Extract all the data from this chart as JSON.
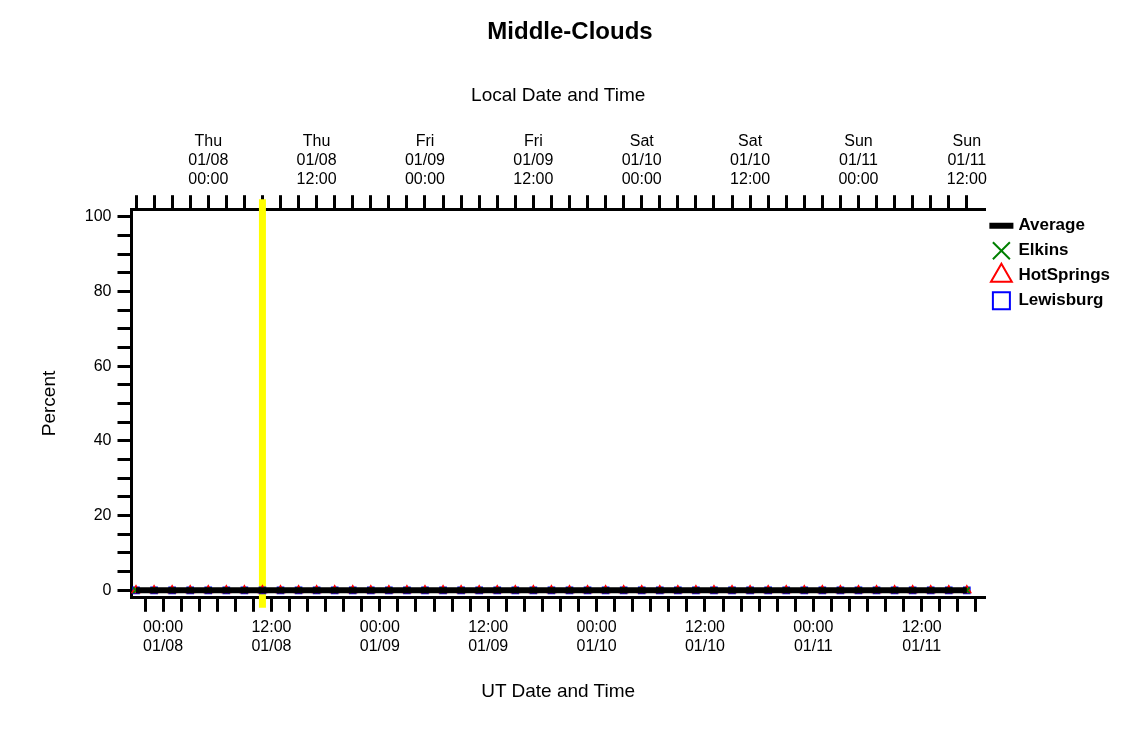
{
  "chart_data": {
    "type": "line",
    "title": "Middle-Clouds",
    "xlabel": "UT Date and Time",
    "x2label": "Local Date and Time",
    "ylabel": "Percent",
    "x": [
      "--01-07T21:00",
      "--01-07T23:00",
      "--01-08T01:00",
      "--01-08T03:00",
      "--01-08T05:00",
      "--01-08T07:00",
      "--01-08T09:00",
      "--01-08T11:00",
      "--01-08T13:00",
      "--01-08T15:00",
      "--01-08T17:00",
      "--01-08T19:00",
      "--01-08T21:00",
      "--01-08T23:00",
      "--01-09T01:00",
      "--01-09T03:00",
      "--01-09T05:00",
      "--01-09T07:00",
      "--01-09T09:00",
      "--01-09T11:00",
      "--01-09T13:00",
      "--01-09T15:00",
      "--01-09T17:00",
      "--01-09T19:00",
      "--01-09T21:00",
      "--01-09T23:00",
      "--01-10T01:00",
      "--01-10T03:00",
      "--01-10T05:00",
      "--01-10T07:00",
      "--01-10T09:00",
      "--01-10T11:00",
      "--01-10T13:00",
      "--01-10T15:00",
      "--01-10T17:00",
      "--01-10T19:00",
      "--01-10T21:00",
      "--01-10T23:00",
      "--01-11T01:00",
      "--01-11T03:00",
      "--01-11T05:00",
      "--01-11T07:00",
      "--01-11T09:00",
      "--01-11T11:00",
      "--01-11T13:00",
      "--01-11T15:00",
      "--01-11T17:00"
    ],
    "series": [
      {
        "name": "Average",
        "color": "#000000",
        "marker": "none",
        "values": [
          0,
          0,
          0,
          0,
          0,
          0,
          0,
          0,
          0,
          0,
          0,
          0,
          0,
          0,
          0,
          0,
          0,
          0,
          0,
          0,
          0,
          0,
          0,
          0,
          0,
          0,
          0,
          0,
          0,
          0,
          0,
          0,
          0,
          0,
          0,
          0,
          0,
          0,
          0,
          0,
          0,
          0,
          0,
          0,
          0,
          0,
          0
        ]
      },
      {
        "name": "Elkins",
        "type": "scatter",
        "color": "#008000",
        "marker": "cross",
        "values": [
          0,
          0,
          0,
          0,
          0,
          0,
          0,
          0,
          0,
          0,
          0,
          0,
          0,
          0,
          0,
          0,
          0,
          0,
          0,
          0,
          0,
          0,
          0,
          0,
          0,
          0,
          0,
          0,
          0,
          0,
          0,
          0,
          0,
          0,
          0,
          0,
          0,
          0,
          0,
          0,
          0,
          0,
          0,
          0,
          0,
          0,
          0
        ]
      },
      {
        "name": "HotSprings",
        "type": "scatter",
        "color": "#ff0000",
        "marker": "triangle",
        "values": [
          0,
          0,
          0,
          0,
          0,
          0,
          0,
          0,
          0,
          0,
          0,
          0,
          0,
          0,
          0,
          0,
          0,
          0,
          0,
          0,
          0,
          0,
          0,
          0,
          0,
          0,
          0,
          0,
          0,
          0,
          0,
          0,
          0,
          0,
          0,
          0,
          0,
          0,
          0,
          0,
          0,
          0,
          0,
          0,
          0,
          0,
          0
        ]
      },
      {
        "name": "Lewisburg",
        "type": "scatter",
        "color": "#0000ff",
        "marker": "square",
        "values": [
          0,
          0,
          0,
          0,
          0,
          0,
          0,
          0,
          0,
          0,
          0,
          0,
          0,
          0,
          0,
          0,
          0,
          0,
          0,
          0,
          0,
          0,
          0,
          0,
          0,
          0,
          0,
          0,
          0,
          0,
          0,
          0,
          0,
          0,
          0,
          0,
          0,
          0,
          0,
          0,
          0,
          0,
          0,
          0,
          0,
          0,
          0
        ]
      }
    ],
    "xlim": [
      "--01-07T20:30",
      "--01-11T19:00"
    ],
    "xticks": [
      {
        "value": "--01-07T22:00",
        "label": null
      },
      {
        "value": "--01-08T00:00",
        "label": "00:00\n01/08"
      },
      {
        "value": "--01-08T02:00",
        "label": null
      },
      {
        "value": "--01-08T04:00",
        "label": null
      },
      {
        "value": "--01-08T06:00",
        "label": null
      },
      {
        "value": "--01-08T08:00",
        "label": null
      },
      {
        "value": "--01-08T10:00",
        "label": null
      },
      {
        "value": "--01-08T12:00",
        "label": "12:00\n01/08"
      },
      {
        "value": "--01-08T14:00",
        "label": null
      },
      {
        "value": "--01-08T16:00",
        "label": null
      },
      {
        "value": "--01-08T18:00",
        "label": null
      },
      {
        "value": "--01-08T20:00",
        "label": null
      },
      {
        "value": "--01-08T22:00",
        "label": null
      },
      {
        "value": "--01-09T00:00",
        "label": "00:00\n01/09"
      },
      {
        "value": "--01-09T02:00",
        "label": null
      },
      {
        "value": "--01-09T04:00",
        "label": null
      },
      {
        "value": "--01-09T06:00",
        "label": null
      },
      {
        "value": "--01-09T08:00",
        "label": null
      },
      {
        "value": "--01-09T10:00",
        "label": null
      },
      {
        "value": "--01-09T12:00",
        "label": "12:00\n01/09"
      },
      {
        "value": "--01-09T14:00",
        "label": null
      },
      {
        "value": "--01-09T16:00",
        "label": null
      },
      {
        "value": "--01-09T18:00",
        "label": null
      },
      {
        "value": "--01-09T20:00",
        "label": null
      },
      {
        "value": "--01-09T22:00",
        "label": null
      },
      {
        "value": "--01-10T00:00",
        "label": "00:00\n01/10"
      },
      {
        "value": "--01-10T02:00",
        "label": null
      },
      {
        "value": "--01-10T04:00",
        "label": null
      },
      {
        "value": "--01-10T06:00",
        "label": null
      },
      {
        "value": "--01-10T08:00",
        "label": null
      },
      {
        "value": "--01-10T10:00",
        "label": null
      },
      {
        "value": "--01-10T12:00",
        "label": "12:00\n01/10"
      },
      {
        "value": "--01-10T14:00",
        "label": null
      },
      {
        "value": "--01-10T16:00",
        "label": null
      },
      {
        "value": "--01-10T18:00",
        "label": null
      },
      {
        "value": "--01-10T20:00",
        "label": null
      },
      {
        "value": "--01-10T22:00",
        "label": null
      },
      {
        "value": "--01-11T00:00",
        "label": "00:00\n01/11"
      },
      {
        "value": "--01-11T02:00",
        "label": null
      },
      {
        "value": "--01-11T04:00",
        "label": null
      },
      {
        "value": "--01-11T06:00",
        "label": null
      },
      {
        "value": "--01-11T08:00",
        "label": null
      },
      {
        "value": "--01-11T10:00",
        "label": null
      },
      {
        "value": "--01-11T12:00",
        "label": "12:00\n01/11"
      },
      {
        "value": "--01-11T14:00",
        "label": null
      },
      {
        "value": "--01-11T16:00",
        "label": null
      },
      {
        "value": "--01-11T18:00",
        "label": null
      }
    ],
    "x2lim": [
      "--01-07T15:30",
      "--01-11T14:00"
    ],
    "x2ticks": [
      {
        "value": "--01-07T16:00",
        "label": null
      },
      {
        "value": "--01-07T18:00",
        "label": null
      },
      {
        "value": "--01-07T20:00",
        "label": null
      },
      {
        "value": "--01-07T22:00",
        "label": null
      },
      {
        "value": "--01-08T00:00",
        "label": "Thu\n01/08\n00:00"
      },
      {
        "value": "--01-08T02:00",
        "label": null
      },
      {
        "value": "--01-08T04:00",
        "label": null
      },
      {
        "value": "--01-08T06:00",
        "label": null
      },
      {
        "value": "--01-08T08:00",
        "label": null
      },
      {
        "value": "--01-08T10:00",
        "label": null
      },
      {
        "value": "--01-08T12:00",
        "label": "Thu\n01/08\n12:00"
      },
      {
        "value": "--01-08T14:00",
        "label": null
      },
      {
        "value": "--01-08T16:00",
        "label": null
      },
      {
        "value": "--01-08T18:00",
        "label": null
      },
      {
        "value": "--01-08T20:00",
        "label": null
      },
      {
        "value": "--01-08T22:00",
        "label": null
      },
      {
        "value": "--01-09T00:00",
        "label": "Fri\n01/09\n00:00"
      },
      {
        "value": "--01-09T02:00",
        "label": null
      },
      {
        "value": "--01-09T04:00",
        "label": null
      },
      {
        "value": "--01-09T06:00",
        "label": null
      },
      {
        "value": "--01-09T08:00",
        "label": null
      },
      {
        "value": "--01-09T10:00",
        "label": null
      },
      {
        "value": "--01-09T12:00",
        "label": "Fri\n01/09\n12:00"
      },
      {
        "value": "--01-09T14:00",
        "label": null
      },
      {
        "value": "--01-09T16:00",
        "label": null
      },
      {
        "value": "--01-09T18:00",
        "label": null
      },
      {
        "value": "--01-09T20:00",
        "label": null
      },
      {
        "value": "--01-09T22:00",
        "label": null
      },
      {
        "value": "--01-10T00:00",
        "label": "Sat\n01/10\n00:00"
      },
      {
        "value": "--01-10T02:00",
        "label": null
      },
      {
        "value": "--01-10T04:00",
        "label": null
      },
      {
        "value": "--01-10T06:00",
        "label": null
      },
      {
        "value": "--01-10T08:00",
        "label": null
      },
      {
        "value": "--01-10T10:00",
        "label": null
      },
      {
        "value": "--01-10T12:00",
        "label": "Sat\n01/10\n12:00"
      },
      {
        "value": "--01-10T14:00",
        "label": null
      },
      {
        "value": "--01-10T16:00",
        "label": null
      },
      {
        "value": "--01-10T18:00",
        "label": null
      },
      {
        "value": "--01-10T20:00",
        "label": null
      },
      {
        "value": "--01-10T22:00",
        "label": null
      },
      {
        "value": "--01-11T00:00",
        "label": "Sun\n01/11\n00:00"
      },
      {
        "value": "--01-11T02:00",
        "label": null
      },
      {
        "value": "--01-11T04:00",
        "label": null
      },
      {
        "value": "--01-11T06:00",
        "label": null
      },
      {
        "value": "--01-11T08:00",
        "label": null
      },
      {
        "value": "--01-11T10:00",
        "label": null
      },
      {
        "value": "--01-11T12:00",
        "label": "Sun\n01/11\n12:00"
      }
    ],
    "ylim": [
      -2,
      102
    ],
    "yticks": [
      {
        "value": 0,
        "label": "0"
      },
      {
        "value": 5,
        "label": null
      },
      {
        "value": 10,
        "label": null
      },
      {
        "value": 15,
        "label": null
      },
      {
        "value": 20,
        "label": "20"
      },
      {
        "value": 25,
        "label": null
      },
      {
        "value": 30,
        "label": null
      },
      {
        "value": 35,
        "label": null
      },
      {
        "value": 40,
        "label": "40"
      },
      {
        "value": 45,
        "label": null
      },
      {
        "value": 50,
        "label": null
      },
      {
        "value": 55,
        "label": null
      },
      {
        "value": 60,
        "label": "60"
      },
      {
        "value": 65,
        "label": null
      },
      {
        "value": 70,
        "label": null
      },
      {
        "value": 75,
        "label": null
      },
      {
        "value": 80,
        "label": "80"
      },
      {
        "value": 85,
        "label": null
      },
      {
        "value": 90,
        "label": null
      },
      {
        "value": 95,
        "label": null
      },
      {
        "value": 100,
        "label": "100"
      }
    ],
    "ref_lines": [
      {
        "axis": "x",
        "value": "--01-08T11:00",
        "color": "#ffff00"
      }
    ],
    "grid": false,
    "legend": "top right"
  }
}
